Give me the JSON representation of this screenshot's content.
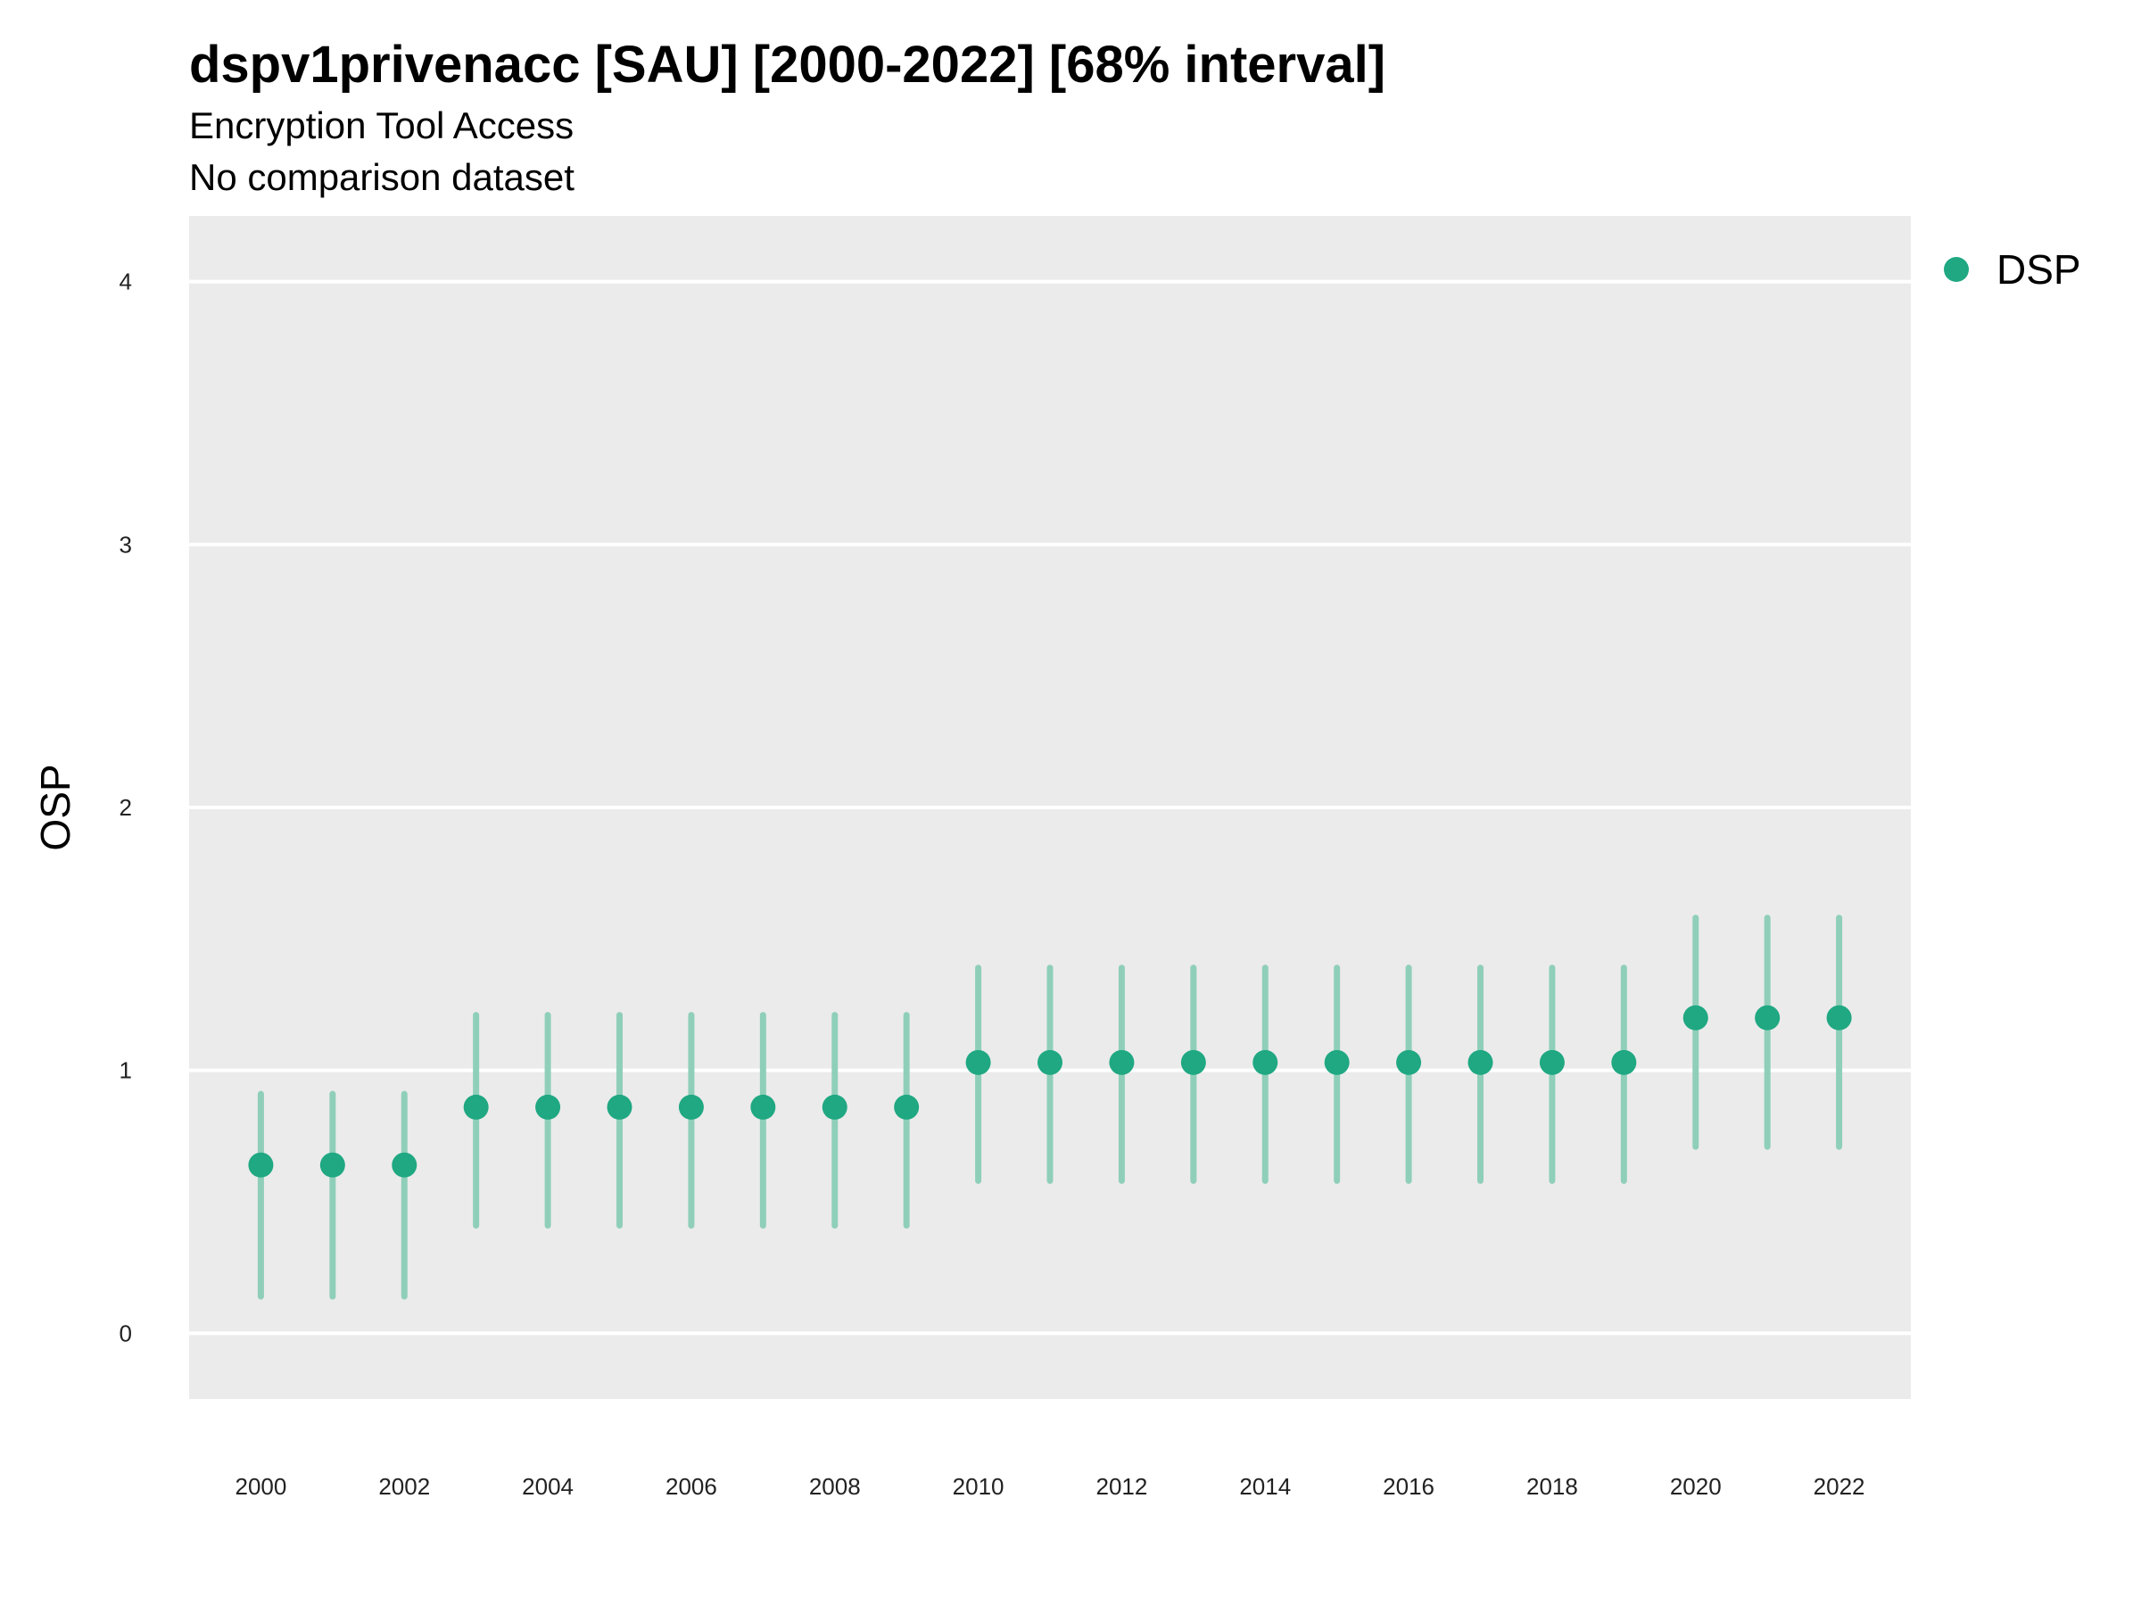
{
  "chart_data": {
    "type": "scatter",
    "title": "dspv1privenacc [SAU] [2000-2022] [68% interval]",
    "subtitle": "Encryption Tool Access",
    "caption": "No comparison dataset",
    "xlabel": "",
    "ylabel": "OSP",
    "xlim": [
      1999,
      2023
    ],
    "ylim": [
      -0.25,
      4.25
    ],
    "yticks": [
      0,
      1,
      2,
      3,
      4
    ],
    "xticks": [
      2000,
      2002,
      2004,
      2006,
      2008,
      2010,
      2012,
      2014,
      2016,
      2018,
      2020,
      2022
    ],
    "grid": true,
    "legend_position": "right-top",
    "series": [
      {
        "name": "DSP",
        "color": "#1fa882",
        "interval_color": "#8fcfb9",
        "x": [
          2000,
          2001,
          2002,
          2003,
          2004,
          2005,
          2006,
          2007,
          2008,
          2009,
          2010,
          2011,
          2012,
          2013,
          2014,
          2015,
          2016,
          2017,
          2018,
          2019,
          2020,
          2021,
          2022
        ],
        "y": [
          0.64,
          0.64,
          0.64,
          0.86,
          0.86,
          0.86,
          0.86,
          0.86,
          0.86,
          0.86,
          1.03,
          1.03,
          1.03,
          1.03,
          1.03,
          1.03,
          1.03,
          1.03,
          1.03,
          1.03,
          1.2,
          1.2,
          1.2
        ],
        "lower": [
          0.14,
          0.14,
          0.14,
          0.41,
          0.41,
          0.41,
          0.41,
          0.41,
          0.41,
          0.41,
          0.58,
          0.58,
          0.58,
          0.58,
          0.58,
          0.58,
          0.58,
          0.58,
          0.58,
          0.58,
          0.71,
          0.71,
          0.71
        ],
        "upper": [
          0.91,
          0.91,
          0.91,
          1.21,
          1.21,
          1.21,
          1.21,
          1.21,
          1.21,
          1.21,
          1.39,
          1.39,
          1.39,
          1.39,
          1.39,
          1.39,
          1.39,
          1.39,
          1.39,
          1.39,
          1.58,
          1.58,
          1.58
        ]
      }
    ]
  },
  "colors": {
    "panel_background": "#ebebeb",
    "grid": "#ffffff"
  }
}
